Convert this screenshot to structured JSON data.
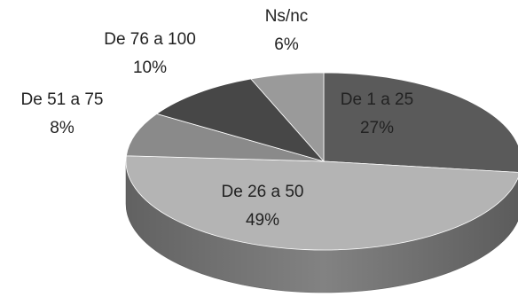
{
  "chart_data": {
    "type": "pie",
    "title": "",
    "style": "3d-exploded-none",
    "slices": [
      {
        "label": "De 1 a 25",
        "value": 27,
        "value_label": "27%",
        "color": "#5a5a5a"
      },
      {
        "label": "De 26 a 50",
        "value": 49,
        "value_label": "49%",
        "color": "#b4b4b4"
      },
      {
        "label": "De 51 a 75",
        "value": 8,
        "value_label": "8%",
        "color": "#8a8a8a"
      },
      {
        "label": "De 76 a 100",
        "value": 10,
        "value_label": "10%",
        "color": "#474747"
      },
      {
        "label": "Ns/nc",
        "value": 6,
        "value_label": "6%",
        "color": "#9a9a9a"
      }
    ],
    "legend": "none",
    "label_placement": "mixed (first two inside, rest outside)"
  }
}
